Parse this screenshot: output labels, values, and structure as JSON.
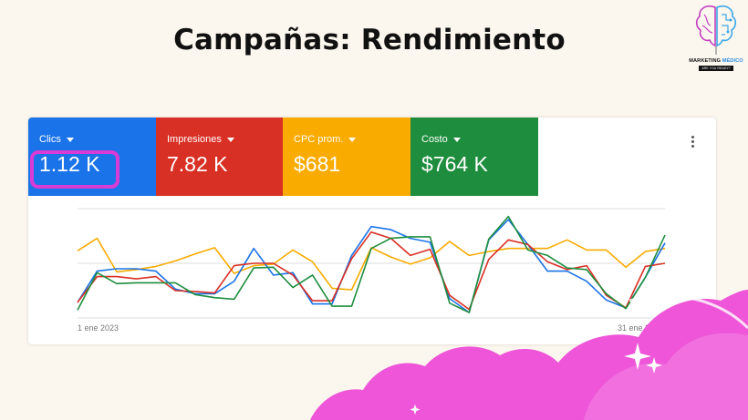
{
  "slide": {
    "title": "Campañas: Rendimiento"
  },
  "logo": {
    "brand_part1": "MARKETING ",
    "brand_part2": "MÉDICO",
    "tagline": "ARE YOU READY?",
    "icon": "brain-icon"
  },
  "metrics": [
    {
      "label": "Clics",
      "value": "1.12 K",
      "color": "#1a73e8"
    },
    {
      "label": "Impresiones",
      "value": "7.82 K",
      "color": "#d93025"
    },
    {
      "label": "CPC prom.",
      "value": "$681",
      "color": "#f9ab00"
    },
    {
      "label": "Costo",
      "value": "$764 K",
      "color": "#1e8e3e"
    }
  ],
  "menu": {
    "icon": "more-vert-icon"
  },
  "chart_data": {
    "type": "line",
    "x_start_label": "1 ene 2023",
    "x_end_label": "31 ene 2023",
    "x": [
      1,
      2,
      3,
      4,
      5,
      6,
      7,
      8,
      9,
      10,
      11,
      12,
      13,
      14,
      15,
      16,
      17,
      18,
      19,
      20,
      21,
      22,
      23,
      24,
      25,
      26,
      27,
      28,
      29,
      30,
      31
    ],
    "series": [
      {
        "color": "#1a73e8",
        "values": [
          20,
          60,
          63,
          63,
          60,
          37,
          31,
          31,
          47,
          89,
          55,
          58,
          18,
          18,
          80,
          117,
          113,
          102,
          97,
          25,
          7,
          100,
          126,
          94,
          60,
          60,
          47,
          23,
          13,
          52,
          96
        ]
      },
      {
        "color": "#d93025",
        "values": [
          20,
          53,
          53,
          50,
          53,
          35,
          34,
          32,
          67,
          70,
          70,
          55,
          22,
          22,
          76,
          110,
          102,
          80,
          88,
          29,
          11,
          75,
          100,
          94,
          72,
          62,
          67,
          29,
          13,
          66,
          70
        ]
      },
      {
        "color": "#f9ab00",
        "values": [
          86,
          102,
          59,
          62,
          66,
          73,
          82,
          90,
          57,
          67,
          69,
          87,
          72,
          38,
          36,
          90,
          78,
          69,
          77,
          98,
          80,
          85,
          89,
          89,
          89,
          100,
          87,
          87,
          65,
          85,
          89
        ]
      },
      {
        "color": "#1e8e3e",
        "values": [
          10,
          58,
          44,
          45,
          45,
          45,
          30,
          26,
          24,
          64,
          65,
          39,
          55,
          15,
          15,
          89,
          102,
          104,
          104,
          19,
          7,
          101,
          130,
          87,
          80,
          64,
          62,
          31,
          12,
          52,
          106
        ]
      }
    ],
    "ylim": [
      0,
      140
    ],
    "grid": true
  }
}
